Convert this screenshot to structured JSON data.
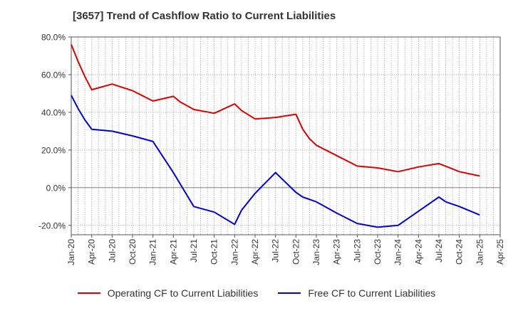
{
  "chart_data": {
    "type": "line",
    "title": "[3657]  Trend of Cashflow Ratio to Current Liabilities",
    "ylim": [
      -25,
      80
    ],
    "y_ticks": [
      {
        "value": 80,
        "label": "80.0%"
      },
      {
        "value": 60,
        "label": "60.0%"
      },
      {
        "value": 40,
        "label": "40.0%"
      },
      {
        "value": 20,
        "label": "20.0%"
      },
      {
        "value": 0,
        "label": "0.0%"
      },
      {
        "value": -20,
        "label": "-20.0%"
      }
    ],
    "x_ticks": [
      "Jan-20",
      "Apr-20",
      "Jul-20",
      "Oct-20",
      "Jan-21",
      "Apr-21",
      "Jul-21",
      "Oct-21",
      "Jan-22",
      "Apr-22",
      "Jul-22",
      "Oct-22",
      "Jan-23",
      "Apr-23",
      "Jul-23",
      "Oct-23",
      "Jan-24",
      "Apr-24",
      "Jul-24",
      "Oct-24",
      "Jan-25",
      "Apr-25"
    ],
    "grid": "dotted",
    "legend_position": "bottom",
    "series": [
      {
        "name": "Operating CF to Current Liabilities",
        "color": "#dd0000",
        "points": [
          {
            "x": "Jan-20",
            "y": 76.0
          },
          {
            "x": "Feb-20",
            "y": 67.0
          },
          {
            "x": "Mar-20",
            "y": 59.0
          },
          {
            "x": "Apr-20",
            "y": 52.0
          },
          {
            "x": "Jul-20",
            "y": 55.0
          },
          {
            "x": "Oct-20",
            "y": 51.5
          },
          {
            "x": "Jan-21",
            "y": 46.0
          },
          {
            "x": "Apr-21",
            "y": 48.5
          },
          {
            "x": "May-21",
            "y": 45.5
          },
          {
            "x": "Jul-21",
            "y": 41.5
          },
          {
            "x": "Oct-21",
            "y": 39.5
          },
          {
            "x": "Jan-22",
            "y": 44.5
          },
          {
            "x": "Feb-22",
            "y": 41.0
          },
          {
            "x": "Apr-22",
            "y": 36.5
          },
          {
            "x": "Jul-22",
            "y": 37.3
          },
          {
            "x": "Oct-22",
            "y": 39.0
          },
          {
            "x": "Nov-22",
            "y": 31.0
          },
          {
            "x": "Dec-22",
            "y": 26.0
          },
          {
            "x": "Jan-23",
            "y": 22.5
          },
          {
            "x": "Apr-23",
            "y": 17.0
          },
          {
            "x": "Jul-23",
            "y": 11.5
          },
          {
            "x": "Oct-23",
            "y": 10.5
          },
          {
            "x": "Jan-24",
            "y": 8.5
          },
          {
            "x": "Apr-24",
            "y": 11.0
          },
          {
            "x": "Jul-24",
            "y": 12.8
          },
          {
            "x": "Oct-24",
            "y": 8.5
          },
          {
            "x": "Jan-25",
            "y": 6.2
          }
        ]
      },
      {
        "name": "Free CF to Current Liabilities",
        "color": "#0000dd",
        "points": [
          {
            "x": "Jan-20",
            "y": 49.0
          },
          {
            "x": "Feb-20",
            "y": 42.0
          },
          {
            "x": "Mar-20",
            "y": 36.0
          },
          {
            "x": "Apr-20",
            "y": 31.0
          },
          {
            "x": "Jul-20",
            "y": 30.0
          },
          {
            "x": "Oct-20",
            "y": 27.5
          },
          {
            "x": "Jan-21",
            "y": 24.5
          },
          {
            "x": "Apr-21",
            "y": 8.0
          },
          {
            "x": "Jul-21",
            "y": -10.0
          },
          {
            "x": "Oct-21",
            "y": -13.0
          },
          {
            "x": "Jan-22",
            "y": -19.5
          },
          {
            "x": "Feb-22",
            "y": -12.0
          },
          {
            "x": "Apr-22",
            "y": -3.0
          },
          {
            "x": "Jul-22",
            "y": 8.0
          },
          {
            "x": "Oct-22",
            "y": -2.5
          },
          {
            "x": "Nov-22",
            "y": -5.0
          },
          {
            "x": "Jan-23",
            "y": -7.5
          },
          {
            "x": "Apr-23",
            "y": -13.5
          },
          {
            "x": "Jul-23",
            "y": -19.0
          },
          {
            "x": "Oct-23",
            "y": -21.0
          },
          {
            "x": "Jan-24",
            "y": -20.0
          },
          {
            "x": "Apr-24",
            "y": -12.5
          },
          {
            "x": "Jul-24",
            "y": -5.0
          },
          {
            "x": "Aug-24",
            "y": -7.5
          },
          {
            "x": "Oct-24",
            "y": -10.0
          },
          {
            "x": "Jan-25",
            "y": -14.5
          }
        ]
      }
    ]
  }
}
